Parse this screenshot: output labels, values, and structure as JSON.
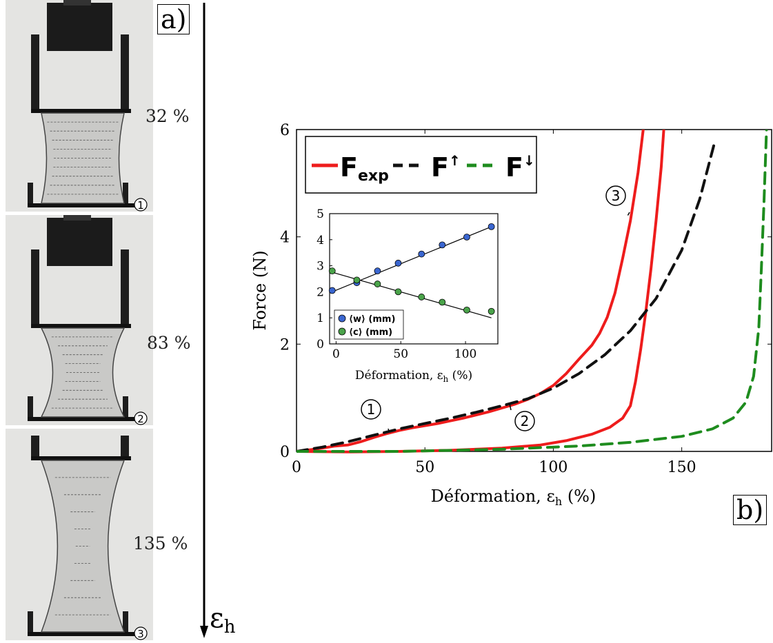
{
  "panel_a": {
    "letter": "a)",
    "strain_labels": [
      "32 %",
      "83 %",
      "135 %"
    ],
    "photo_markers": [
      "①",
      "②",
      "③"
    ],
    "arrow_label_main": "ε",
    "arrow_label_sub": "h"
  },
  "panel_b": {
    "letter": "b)",
    "colors": {
      "exp": "#ee1c1c",
      "up": "#111111",
      "down": "#1e8c1e",
      "blue": "#3a66d0",
      "green": "#4aa34a"
    }
  },
  "chart_data": [
    {
      "type": "line",
      "xlabel": "Déformation, ε",
      "xlabel_sub": "h",
      "xlabel_unit": " (%)",
      "ylabel": "Force (N)",
      "xlim": [
        0,
        185
      ],
      "ylim": [
        0,
        6
      ],
      "xticks": [
        0,
        50,
        100,
        150
      ],
      "yticks": [
        0,
        2,
        4,
        6
      ],
      "legend": [
        "F",
        "exp",
        "F",
        "↑",
        "F",
        "↓"
      ],
      "curve_markers": [
        "1",
        "2",
        "3"
      ],
      "series": [
        {
          "name": "F_exp",
          "style": "solid",
          "color": "#ee1c1c",
          "points": [
            [
              0,
              0
            ],
            [
              5,
              0.03
            ],
            [
              10,
              0.06
            ],
            [
              15,
              0.1
            ],
            [
              20,
              0.12
            ],
            [
              25,
              0.18
            ],
            [
              30,
              0.26
            ],
            [
              35,
              0.33
            ],
            [
              40,
              0.39
            ],
            [
              45,
              0.44
            ],
            [
              50,
              0.48
            ],
            [
              55,
              0.52
            ],
            [
              60,
              0.57
            ],
            [
              65,
              0.62
            ],
            [
              70,
              0.68
            ],
            [
              75,
              0.74
            ],
            [
              80,
              0.81
            ],
            [
              85,
              0.88
            ],
            [
              90,
              0.97
            ],
            [
              95,
              1.08
            ],
            [
              100,
              1.23
            ],
            [
              105,
              1.45
            ],
            [
              110,
              1.72
            ],
            [
              115,
              1.98
            ],
            [
              118,
              2.2
            ],
            [
              121,
              2.5
            ],
            [
              124,
              2.95
            ],
            [
              127,
              3.6
            ],
            [
              130,
              4.3
            ],
            [
              133,
              5.2
            ],
            [
              135,
              6.0
            ]
          ]
        },
        {
          "name": "F_exp_unload",
          "style": "solid",
          "color": "#ee1c1c",
          "points": [
            [
              0,
              0
            ],
            [
              20,
              -0.01
            ],
            [
              40,
              0.0
            ],
            [
              60,
              0.02
            ],
            [
              80,
              0.06
            ],
            [
              95,
              0.12
            ],
            [
              105,
              0.2
            ],
            [
              115,
              0.32
            ],
            [
              122,
              0.45
            ],
            [
              127,
              0.62
            ],
            [
              130,
              0.85
            ],
            [
              132,
              1.3
            ],
            [
              134,
              1.9
            ],
            [
              136,
              2.6
            ],
            [
              138,
              3.4
            ],
            [
              140,
              4.3
            ],
            [
              142,
              5.3
            ],
            [
              143,
              6.0
            ]
          ]
        },
        {
          "name": "F_up",
          "style": "dashed",
          "color": "#111111",
          "points": [
            [
              0,
              0
            ],
            [
              10,
              0.08
            ],
            [
              20,
              0.18
            ],
            [
              30,
              0.3
            ],
            [
              40,
              0.42
            ],
            [
              50,
              0.52
            ],
            [
              60,
              0.62
            ],
            [
              70,
              0.73
            ],
            [
              80,
              0.85
            ],
            [
              90,
              0.98
            ],
            [
              100,
              1.18
            ],
            [
              110,
              1.45
            ],
            [
              120,
              1.8
            ],
            [
              130,
              2.25
            ],
            [
              140,
              2.85
            ],
            [
              150,
              3.75
            ],
            [
              157,
              4.7
            ],
            [
              163,
              5.8
            ]
          ]
        },
        {
          "name": "F_down",
          "style": "dashed",
          "color": "#1e8c1e",
          "points": [
            [
              0,
              0
            ],
            [
              40,
              0.0
            ],
            [
              80,
              0.04
            ],
            [
              110,
              0.1
            ],
            [
              130,
              0.17
            ],
            [
              150,
              0.28
            ],
            [
              162,
              0.42
            ],
            [
              170,
              0.62
            ],
            [
              175,
              0.92
            ],
            [
              178,
              1.4
            ],
            [
              180,
              2.3
            ],
            [
              181,
              3.4
            ],
            [
              182,
              4.6
            ],
            [
              183,
              6.0
            ]
          ]
        }
      ]
    },
    {
      "type": "scatter",
      "xlabel": "Déformation, ε",
      "xlabel_sub": "h",
      "xlabel_unit": " (%)",
      "xlim": [
        -5,
        125
      ],
      "ylim": [
        0,
        5
      ],
      "xticks": [
        0,
        50,
        100
      ],
      "yticks": [
        0,
        1,
        2,
        3,
        4,
        5
      ],
      "series": [
        {
          "name": "⟨w⟩ (mm)",
          "color": "#3a66d0",
          "x": [
            -3,
            16,
            32,
            48,
            66,
            82,
            101,
            120
          ],
          "y": [
            2.05,
            2.35,
            2.8,
            3.1,
            3.45,
            3.8,
            4.1,
            4.5
          ]
        },
        {
          "name": "⟨c⟩ (mm)",
          "color": "#4aa34a",
          "x": [
            -3,
            16,
            32,
            48,
            66,
            82,
            101,
            120
          ],
          "y": [
            2.8,
            2.45,
            2.3,
            2.0,
            1.8,
            1.6,
            1.3,
            1.25
          ]
        }
      ],
      "fits": [
        {
          "x": [
            -3,
            120
          ],
          "y": [
            2.0,
            4.5
          ]
        },
        {
          "x": [
            -3,
            120
          ],
          "y": [
            2.75,
            1.0
          ]
        }
      ]
    }
  ]
}
